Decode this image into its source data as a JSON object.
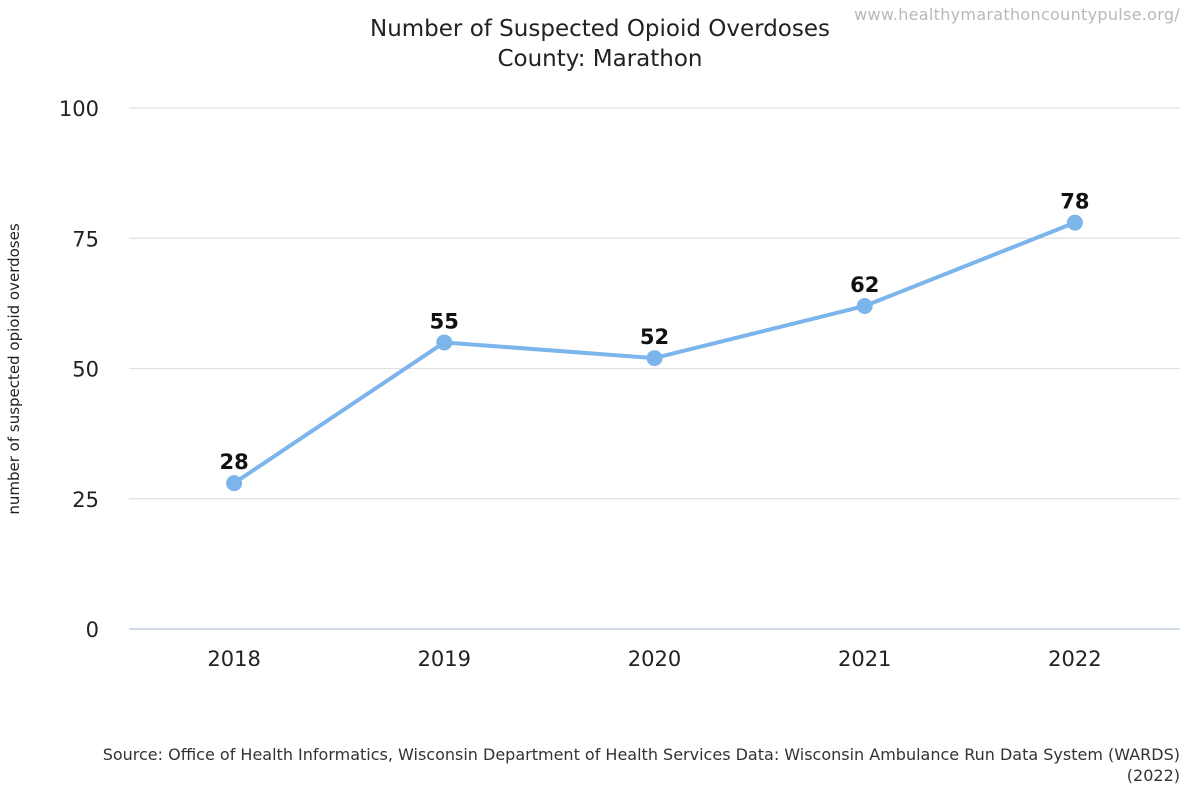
{
  "watermark": "www.healthymarathoncountypulse.org/",
  "source_text": "Source: Office of Health Informatics, Wisconsin Department of Health Services Data: Wisconsin Ambulance Run Data System (WARDS) (2022)",
  "colors": {
    "series": "#7cb5ec",
    "grid": "#e0e0e0",
    "axis": "#c0d0e0"
  },
  "chart_data": {
    "type": "line",
    "title": "Number of Suspected Opioid Overdoses",
    "subtitle": "County: Marathon",
    "xlabel": "",
    "ylabel": "number of suspected opioid overdoses",
    "categories": [
      "2018",
      "2019",
      "2020",
      "2021",
      "2022"
    ],
    "series": [
      {
        "values": [
          28,
          55,
          52,
          62,
          78
        ]
      }
    ],
    "ylim": [
      0,
      100
    ],
    "yticks": [
      0,
      25,
      50,
      75,
      100
    ],
    "grid": true,
    "data_labels": true,
    "legend": "none"
  }
}
